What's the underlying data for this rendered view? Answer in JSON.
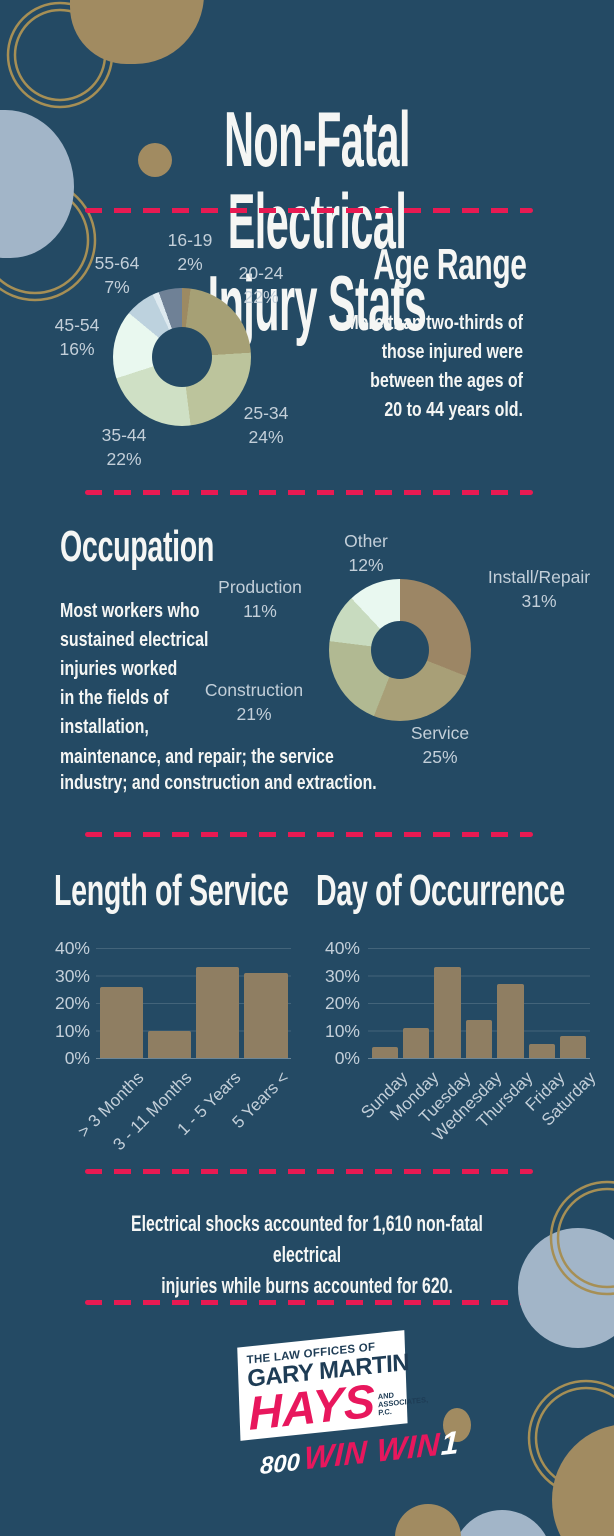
{
  "colors": {
    "background": "#244a64",
    "accent_pink": "#e81a52",
    "logo_pink": "#e8175d",
    "tan_blob": "#a18b61",
    "gold_ring": "#a68f55",
    "light_blue_blob": "#a2b5c8",
    "bar_tan": "#8f7e62",
    "text_white": "#f5f6f4",
    "label_gray_blue": "#c3cfd9"
  },
  "title": {
    "lines": [
      "Non-Fatal Electrical",
      "Injury Stats"
    ]
  },
  "sections": {
    "age": {
      "heading": "Age Range",
      "body_lines": [
        "More than two-thirds of",
        "those injured were",
        "between the ages of",
        "20 to 44 years old."
      ]
    },
    "occupation": {
      "heading": "Occupation",
      "body_column_lines": [
        "Most workers who",
        "sustained electrical",
        "injuries worked",
        "in the fields of",
        "installation,"
      ],
      "body_wide_lines": [
        "maintenance, and repair; the service",
        "industry; and construction and extraction."
      ]
    },
    "length_of_service": {
      "heading": "Length of Service"
    },
    "day_of_occurrence": {
      "heading": "Day of Occurrence"
    },
    "footer_note_lines": [
      "Electrical shocks accounted for 1,610 non-fatal electrical",
      "injuries while burns accounted for 620."
    ]
  },
  "logo": {
    "tagline": "THE LAW OFFICES OF",
    "name_line": "GARY MARTIN",
    "name_main": "HAYS",
    "suffix_lines": [
      "AND",
      "ASSOCIATES,",
      "P.C."
    ],
    "phone_prefix": "800",
    "phone_win": "WIN WIN",
    "phone_one": "1"
  },
  "chart_data": [
    {
      "id": "age_donut",
      "type": "pie",
      "donut": true,
      "title": "Age Range",
      "segments": [
        {
          "label": "16-19",
          "pct": "2%",
          "value": 2,
          "color": "#9d8a62"
        },
        {
          "label": "20-24",
          "pct": "22%",
          "value": 22,
          "color": "#a6a075"
        },
        {
          "label": "25-34",
          "pct": "24%",
          "value": 24,
          "color": "#bcc49c"
        },
        {
          "label": "35-44",
          "pct": "22%",
          "value": 22,
          "color": "#cfe0c5"
        },
        {
          "label": "45-54",
          "pct": "16%",
          "value": 16,
          "color": "#e9f8ef"
        },
        {
          "label": "55-64",
          "pct": "7%",
          "value": 7,
          "color": "#bdd2de"
        },
        {
          "label": "",
          "pct": "",
          "value": 1.5,
          "color": "#dde9ef"
        },
        {
          "label": "",
          "pct": "",
          "value": 5.5,
          "color": "#6f8196"
        }
      ]
    },
    {
      "id": "occupation_donut",
      "type": "pie",
      "donut": true,
      "title": "Occupation",
      "segments": [
        {
          "label": "Install/Repair",
          "pct": "31%",
          "value": 31,
          "color": "#9c8665"
        },
        {
          "label": "Service",
          "pct": "25%",
          "value": 25,
          "color": "#a89f77"
        },
        {
          "label": "Construction",
          "pct": "21%",
          "value": 21,
          "color": "#b1b992"
        },
        {
          "label": "Production",
          "pct": "11%",
          "value": 11,
          "color": "#c8dbbf"
        },
        {
          "label": "Other",
          "pct": "12%",
          "value": 12,
          "color": "#e9f8f0"
        }
      ]
    },
    {
      "id": "length_of_service_bar",
      "type": "bar",
      "title": "Length of Service",
      "categories": [
        "> 3 Months",
        "3 - 11 Months",
        "1 - 5 Years",
        "5 Years <"
      ],
      "values": [
        26,
        10,
        33,
        31
      ],
      "bar_color": "#8f7e62",
      "ylim": [
        0,
        40
      ],
      "yticks": [
        "40%",
        "30%",
        "20%",
        "10%",
        "0%"
      ],
      "grid": true,
      "legend": "none"
    },
    {
      "id": "day_of_occurrence_bar",
      "type": "bar",
      "title": "Day of Occurrence",
      "categories": [
        "Sunday",
        "Monday",
        "Tuesday",
        "Wednesday",
        "Thursday",
        "Friday",
        "Saturday"
      ],
      "values": [
        4,
        11,
        33,
        14,
        27,
        5,
        8
      ],
      "bar_color": "#8f7e62",
      "ylim": [
        0,
        40
      ],
      "yticks": [
        "40%",
        "30%",
        "20%",
        "10%",
        "0%"
      ],
      "grid": true,
      "legend": "none"
    }
  ]
}
